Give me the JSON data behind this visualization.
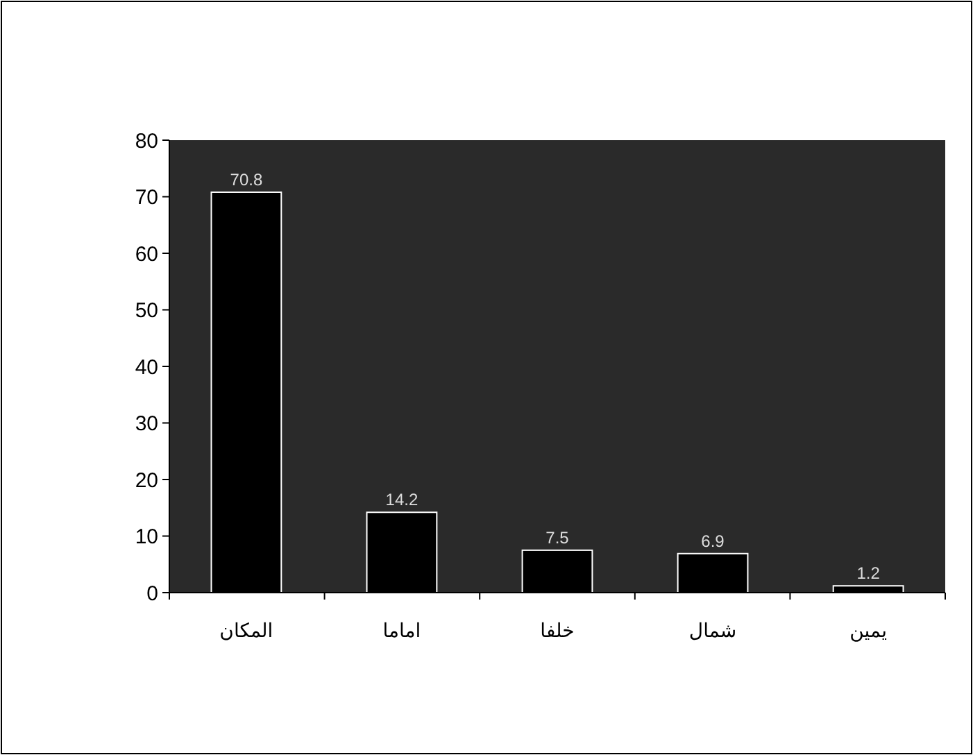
{
  "chart_data": {
    "type": "bar",
    "categories": [
      "المكان",
      "اماما",
      "خلفا",
      "شمال",
      "يمين"
    ],
    "values": [
      70.8,
      14.2,
      7.5,
      6.9,
      1.2
    ],
    "color": "#000000",
    "ylim": [
      0,
      80
    ],
    "yticks": [
      0,
      10,
      20,
      30,
      40,
      50,
      60,
      70,
      80
    ],
    "data_labels": true,
    "grid": false
  }
}
